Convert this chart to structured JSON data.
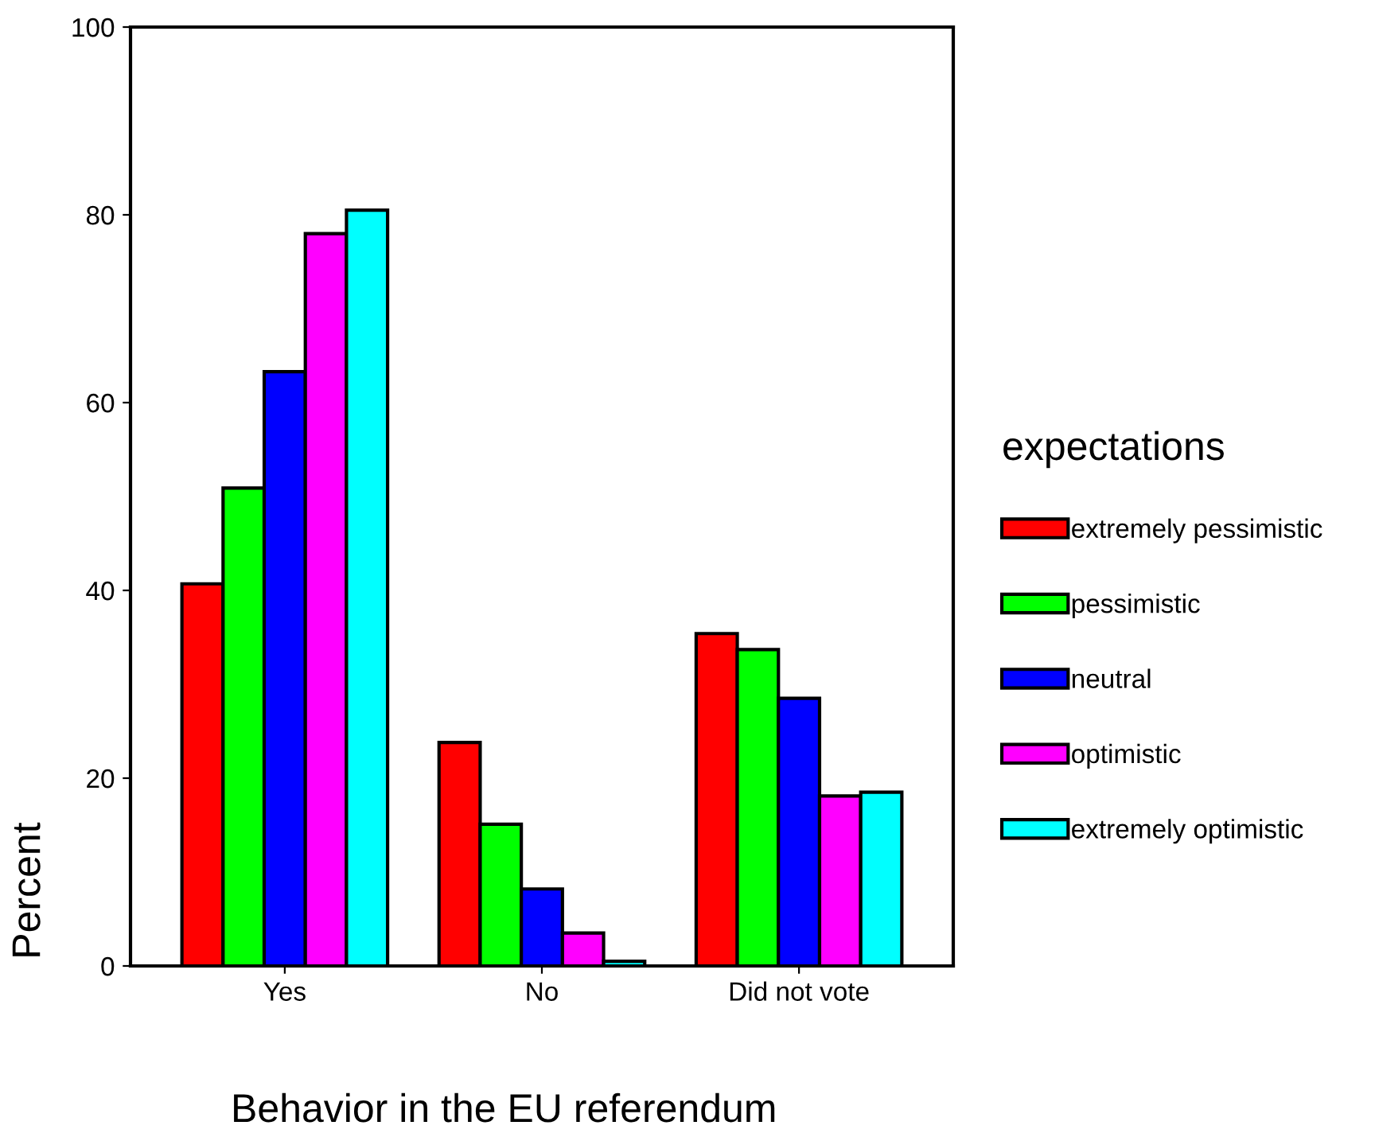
{
  "chart_data": {
    "type": "bar",
    "categories": [
      "Yes",
      "No",
      "Did not vote"
    ],
    "series": [
      {
        "name": "extremely pessimistic",
        "color": "#ff0000",
        "values": [
          40.7,
          23.8,
          35.4
        ]
      },
      {
        "name": "pessimistic",
        "color": "#00ff00",
        "values": [
          50.9,
          15.1,
          33.7
        ]
      },
      {
        "name": "neutral",
        "color": "#0000ff",
        "values": [
          63.3,
          8.2,
          28.5
        ]
      },
      {
        "name": "optimistic",
        "color": "#ff00ff",
        "values": [
          78.0,
          3.5,
          18.1
        ]
      },
      {
        "name": "extremely optimistic",
        "color": "#00ffff",
        "values": [
          80.5,
          0.5,
          18.5
        ]
      }
    ],
    "xlabel": "Behavior in the EU referendum",
    "ylabel": "Percent",
    "legend_title": "expectations",
    "ylim": [
      0,
      100
    ],
    "yticks": [
      0,
      20,
      40,
      60,
      80,
      100
    ],
    "grid": false,
    "legend": "right"
  }
}
